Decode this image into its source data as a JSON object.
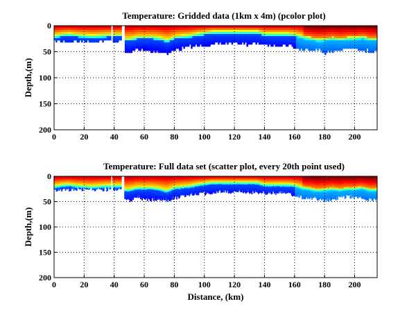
{
  "chart_data": [
    {
      "type": "heatmap",
      "title": "Temperature: Gridded data (1km x 4m) (pcolor plot)",
      "xlabel": "",
      "ylabel": "Depth,(m)",
      "xlim": [
        0,
        215
      ],
      "ylim": [
        200,
        0
      ],
      "y_reversed": true,
      "xticks": [
        "0",
        "20",
        "40",
        "60",
        "80",
        "100",
        "120",
        "140",
        "160",
        "180",
        "200"
      ],
      "yticks": [
        "0",
        "50",
        "100",
        "150",
        "200"
      ],
      "grid": true,
      "colormap": "jet",
      "cell_size": {
        "distance_km": 1,
        "depth_m": 4
      }
    },
    {
      "type": "scatter",
      "title": "Temperature: Full data set (scatter plot, every 20th point used)",
      "xlabel": "Distance, (km)",
      "ylabel": "Depth,(m)",
      "xlim": [
        0,
        215
      ],
      "ylim": [
        200,
        0
      ],
      "y_reversed": true,
      "xticks": [
        "0",
        "20",
        "40",
        "60",
        "80",
        "100",
        "120",
        "140",
        "160",
        "180",
        "200"
      ],
      "yticks": [
        "0",
        "50",
        "100",
        "150",
        "200"
      ],
      "grid": true,
      "colormap": "jet"
    }
  ],
  "section_profile": {
    "distance_km": [
      0,
      5,
      10,
      15,
      20,
      25,
      30,
      35,
      40,
      45,
      50,
      55,
      60,
      65,
      70,
      75,
      80,
      85,
      90,
      95,
      100,
      105,
      110,
      115,
      120,
      125,
      130,
      135,
      140,
      145,
      150,
      155,
      160,
      165,
      170,
      175,
      180,
      185,
      190,
      195,
      200,
      205,
      210,
      215
    ],
    "thermocline_depth_m": [
      18,
      15,
      14,
      16,
      17,
      18,
      17,
      16,
      16,
      null,
      24,
      20,
      20,
      20,
      22,
      26,
      20,
      18,
      17,
      14,
      12,
      10,
      10,
      10,
      10,
      10,
      10,
      10,
      14,
      14,
      14,
      14,
      15,
      20,
      22,
      25,
      24,
      22,
      24,
      22,
      22,
      20,
      24,
      24
    ],
    "max_depth_m": [
      28,
      28,
      28,
      28,
      28,
      28,
      28,
      28,
      28,
      null,
      50,
      42,
      48,
      48,
      48,
      50,
      45,
      42,
      38,
      38,
      36,
      35,
      32,
      33,
      32,
      32,
      34,
      33,
      35,
      35,
      35,
      35,
      40,
      45,
      45,
      45,
      50,
      48,
      45,
      42,
      42,
      45,
      48,
      48
    ],
    "gaps_km": [
      [
        38,
        39
      ],
      [
        45,
        47
      ]
    ]
  }
}
